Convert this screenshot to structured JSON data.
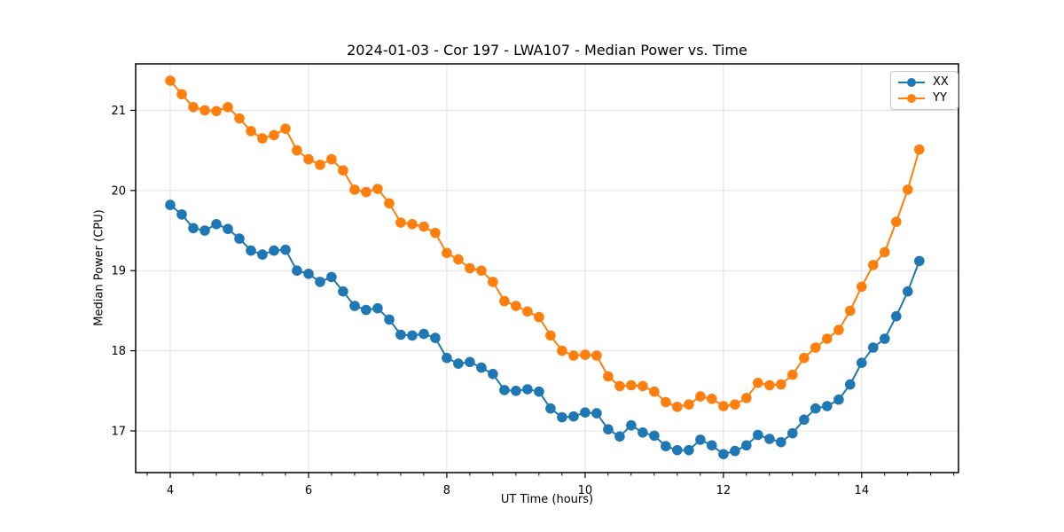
{
  "chart_data": {
    "type": "line",
    "title": "2024-01-03 - Cor 197 - LWA107 - Median Power vs. Time",
    "xlabel": "UT Time (hours)",
    "ylabel": "Median Power (CPU)",
    "xlim": [
      3.5,
      15.4
    ],
    "ylim": [
      16.48,
      21.58
    ],
    "xticks": [
      4,
      6,
      8,
      10,
      12,
      14
    ],
    "yticks": [
      17,
      18,
      19,
      20,
      21
    ],
    "x_minor_step": 0.3333,
    "grid": true,
    "grid_color": "#e0e0e0",
    "legend_position": "upper right",
    "x": [
      4.0,
      4.167,
      4.333,
      4.5,
      4.667,
      4.833,
      5.0,
      5.167,
      5.333,
      5.5,
      5.667,
      5.833,
      6.0,
      6.167,
      6.333,
      6.5,
      6.667,
      6.833,
      7.0,
      7.167,
      7.333,
      7.5,
      7.667,
      7.833,
      8.0,
      8.167,
      8.333,
      8.5,
      8.667,
      8.833,
      9.0,
      9.167,
      9.333,
      9.5,
      9.667,
      9.833,
      10.0,
      10.167,
      10.333,
      10.5,
      10.667,
      10.833,
      11.0,
      11.167,
      11.333,
      11.5,
      11.667,
      11.833,
      12.0,
      12.167,
      12.333,
      12.5,
      12.667,
      12.833,
      13.0,
      13.167,
      13.333,
      13.5,
      13.667,
      13.833,
      14.0,
      14.167,
      14.333,
      14.5,
      14.667,
      14.833
    ],
    "series": [
      {
        "name": "XX",
        "color": "#1f77b4",
        "values": [
          19.82,
          19.7,
          19.53,
          19.5,
          19.58,
          19.52,
          19.4,
          19.25,
          19.2,
          19.25,
          19.26,
          19.0,
          18.96,
          18.86,
          18.92,
          18.74,
          18.56,
          18.51,
          18.53,
          18.39,
          18.2,
          18.19,
          18.21,
          18.16,
          17.91,
          17.84,
          17.86,
          17.79,
          17.71,
          17.51,
          17.5,
          17.52,
          17.49,
          17.28,
          17.17,
          17.18,
          17.23,
          17.22,
          17.02,
          16.93,
          17.07,
          16.98,
          16.94,
          16.81,
          16.76,
          16.76,
          16.89,
          16.82,
          16.71,
          16.75,
          16.82,
          16.95,
          16.9,
          16.86,
          16.97,
          17.14,
          17.28,
          17.31,
          17.39,
          17.58,
          17.85,
          18.04,
          18.15,
          18.43,
          18.74,
          19.12
        ]
      },
      {
        "name": "YY",
        "color": "#ff7f0e",
        "values": [
          21.37,
          21.2,
          21.04,
          21.0,
          20.99,
          21.04,
          20.9,
          20.74,
          20.65,
          20.69,
          20.77,
          20.5,
          20.39,
          20.32,
          20.39,
          20.25,
          20.01,
          19.98,
          20.02,
          19.84,
          19.6,
          19.58,
          19.55,
          19.47,
          19.22,
          19.14,
          19.03,
          19.0,
          18.86,
          18.62,
          18.56,
          18.49,
          18.42,
          18.19,
          18.0,
          17.94,
          17.95,
          17.94,
          17.68,
          17.56,
          17.57,
          17.56,
          17.49,
          17.36,
          17.3,
          17.33,
          17.43,
          17.4,
          17.31,
          17.33,
          17.41,
          17.6,
          17.57,
          17.58,
          17.7,
          17.91,
          18.04,
          18.15,
          18.26,
          18.5,
          18.8,
          19.07,
          19.23,
          19.61,
          20.01,
          20.51
        ]
      }
    ]
  }
}
